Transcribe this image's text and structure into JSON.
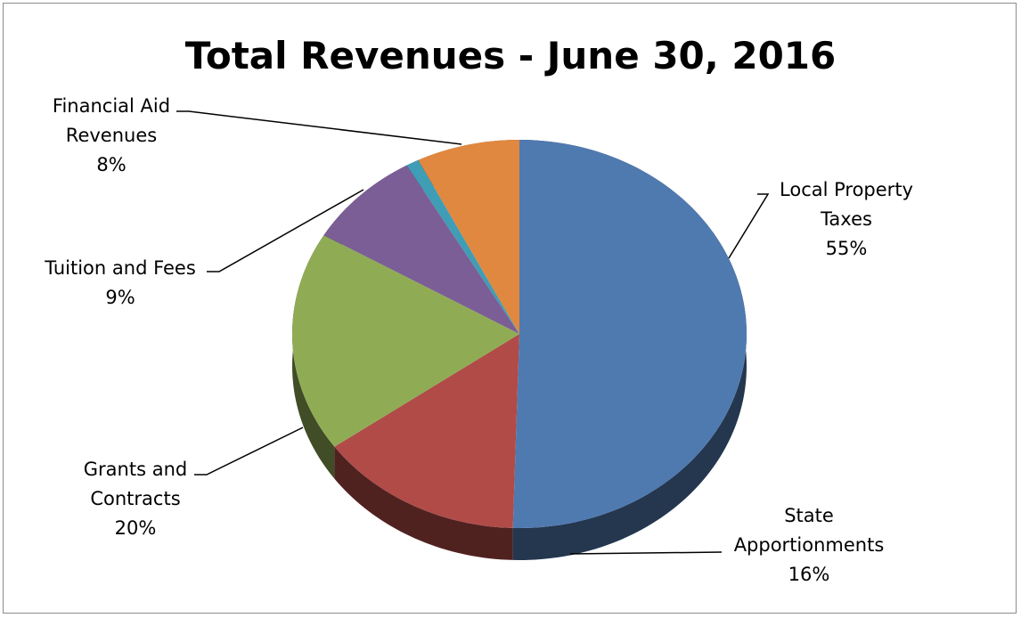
{
  "chart_data": {
    "type": "pie",
    "title": "Total Revenues - June 30, 2016",
    "categories": [
      "Local Property Taxes",
      "State Apportionments",
      "Grants and Contracts",
      "Tuition and Fees",
      null,
      "Financial Aid Revenues"
    ],
    "values": [
      55,
      16,
      20,
      9,
      1,
      8
    ],
    "value_labels": [
      "55%",
      "16%",
      "20%",
      "9%",
      null,
      "8%"
    ],
    "colors": [
      "#4f7ab0",
      "#b04b48",
      "#8fac55",
      "#7a5e95",
      "#3f9db5",
      "#e0883f"
    ]
  }
}
